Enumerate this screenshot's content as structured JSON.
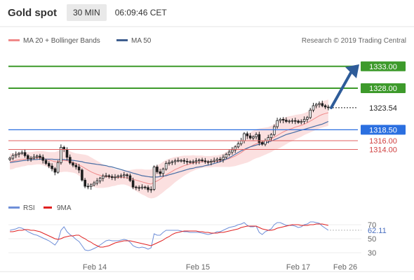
{
  "header": {
    "title": "Gold spot",
    "timeframe": "30 MIN",
    "time": "06:09:46 CET"
  },
  "legend": {
    "ma20": "MA 20 + Bollinger Bands",
    "ma50": "MA 50",
    "credit": "Research © 2019 Trading Central"
  },
  "rsi_legend": {
    "rsi": "RSI",
    "ma": "9MA"
  },
  "chart_data": [
    {
      "type": "line",
      "title": "Gold spot",
      "x_ticks": [
        "Feb 14",
        "Feb 15",
        "Feb 17",
        "Feb 26"
      ],
      "y_range": [
        1304,
        1336
      ],
      "current_price": 1323.54,
      "price_close": [
        1312.0,
        1312.6,
        1312.9,
        1313.1,
        1313.3,
        1312.6,
        1311.9,
        1312.0,
        1312.3,
        1312.5,
        1312.2,
        1311.5,
        1310.8,
        1310.2,
        1309.6,
        1308.8,
        1311.0,
        1314.5,
        1314.0,
        1312.2,
        1310.9,
        1310.4,
        1310.0,
        1309.3,
        1307.0,
        1305.6,
        1305.5,
        1305.9,
        1306.3,
        1306.8,
        1307.4,
        1307.9,
        1308.0,
        1307.8,
        1307.6,
        1307.7,
        1307.9,
        1308.0,
        1308.2,
        1308.0,
        1306.9,
        1305.4,
        1305.3,
        1305.2,
        1305.4,
        1305.3,
        1304.8,
        1304.9,
        1310.0,
        1308.9,
        1308.5,
        1309.5,
        1310.8,
        1311.0,
        1311.2,
        1311.4,
        1311.5,
        1311.5,
        1311.3,
        1311.2,
        1311.1,
        1311.2,
        1311.4,
        1311.6,
        1311.4,
        1311.2,
        1311.1,
        1311.3,
        1311.5,
        1311.8,
        1311.7,
        1312.2,
        1312.9,
        1313.4,
        1313.9,
        1314.6,
        1315.3,
        1316.0,
        1317.6,
        1317.1,
        1316.6,
        1316.9,
        1317.4,
        1315.6,
        1315.2,
        1316.0,
        1316.7,
        1317.4,
        1319.2,
        1320.6,
        1320.9,
        1320.7,
        1320.4,
        1320.5,
        1320.6,
        1320.5,
        1320.2,
        1320.4,
        1320.9,
        1321.3,
        1323.0,
        1324.0,
        1324.3,
        1324.5,
        1324.0,
        1323.7,
        1323.54
      ],
      "ma20": [
        1311.2,
        1311.3,
        1311.5,
        1311.6,
        1311.7,
        1311.8,
        1311.9,
        1311.9,
        1312.0,
        1312.1,
        1312.1,
        1312.0,
        1311.8,
        1311.6,
        1311.4,
        1311.2,
        1311.2,
        1311.4,
        1311.5,
        1311.4,
        1311.2,
        1311.0,
        1310.8,
        1310.5,
        1310.1,
        1309.7,
        1309.3,
        1308.9,
        1308.6,
        1308.3,
        1308.1,
        1307.9,
        1307.8,
        1307.7,
        1307.7,
        1307.6,
        1307.6,
        1307.6,
        1307.6,
        1307.5,
        1307.4,
        1307.2,
        1307.0,
        1306.8,
        1306.6,
        1306.4,
        1306.2,
        1306.1,
        1306.5,
        1306.8,
        1307.2,
        1307.7,
        1308.2,
        1308.6,
        1309.0,
        1309.4,
        1309.7,
        1310.0,
        1310.3,
        1310.5,
        1310.7,
        1310.9,
        1311.0,
        1311.1,
        1311.2,
        1311.2,
        1311.2,
        1311.2,
        1311.3,
        1311.3,
        1311.4,
        1311.5,
        1311.7,
        1311.9,
        1312.2,
        1312.5,
        1312.9,
        1313.3,
        1313.8,
        1314.2,
        1314.6,
        1315.0,
        1315.3,
        1315.5,
        1315.7,
        1315.9,
        1316.1,
        1316.4,
        1316.8,
        1317.2,
        1317.6,
        1318.0,
        1318.3,
        1318.6,
        1318.8,
        1319.1,
        1319.3,
        1319.5,
        1319.8,
        1320.1,
        1320.5,
        1320.9,
        1321.3,
        1321.7,
        1322.0,
        1322.2,
        1322.4
      ],
      "bb_width": [
        1.8,
        1.8,
        1.7,
        1.7,
        1.6,
        1.6,
        1.5,
        1.5,
        1.5,
        1.5,
        1.5,
        1.6,
        1.7,
        1.8,
        2.0,
        2.2,
        2.4,
        2.6,
        2.6,
        2.5,
        2.4,
        2.3,
        2.3,
        2.5,
        2.8,
        3.1,
        3.3,
        3.3,
        3.2,
        3.1,
        2.9,
        2.7,
        2.5,
        2.3,
        2.1,
        1.9,
        1.7,
        1.6,
        1.6,
        1.7,
        1.9,
        2.2,
        2.5,
        2.7,
        2.9,
        3.0,
        3.2,
        3.3,
        3.6,
        3.6,
        3.5,
        3.5,
        3.4,
        3.3,
        3.1,
        2.9,
        2.7,
        2.5,
        2.3,
        2.1,
        1.9,
        1.8,
        1.6,
        1.5,
        1.4,
        1.3,
        1.3,
        1.3,
        1.3,
        1.3,
        1.4,
        1.5,
        1.7,
        1.9,
        2.1,
        2.3,
        2.5,
        2.7,
        3.0,
        3.2,
        3.3,
        3.3,
        3.3,
        3.3,
        3.2,
        3.1,
        3.0,
        3.0,
        3.0,
        3.1,
        3.2,
        3.2,
        3.1,
        3.0,
        2.9,
        2.8,
        2.7,
        2.6,
        2.5,
        2.5,
        2.6,
        2.7,
        2.8,
        2.9,
        3.0,
        3.0,
        3.0
      ],
      "ma50": [
        1311.0,
        1311.1,
        1311.2,
        1311.3,
        1311.4,
        1311.5,
        1311.6,
        1311.6,
        1311.7,
        1311.7,
        1311.8,
        1311.8,
        1311.8,
        1311.8,
        1311.8,
        1311.7,
        1311.7,
        1311.7,
        1311.7,
        1311.6,
        1311.6,
        1311.5,
        1311.4,
        1311.3,
        1311.2,
        1311.0,
        1310.9,
        1310.8,
        1310.7,
        1310.6,
        1310.5,
        1310.4,
        1310.3,
        1310.1,
        1310.0,
        1309.8,
        1309.6,
        1309.4,
        1309.2,
        1309.0,
        1308.8,
        1308.6,
        1308.4,
        1308.2,
        1308.0,
        1307.9,
        1307.8,
        1307.7,
        1307.7,
        1307.7,
        1307.8,
        1307.9,
        1308.0,
        1308.2,
        1308.4,
        1308.6,
        1308.8,
        1309.0,
        1309.2,
        1309.4,
        1309.6,
        1309.7,
        1309.9,
        1310.0,
        1310.1,
        1310.3,
        1310.4,
        1310.6,
        1310.8,
        1311.0,
        1311.2,
        1311.5,
        1311.8,
        1312.1,
        1312.5,
        1312.9,
        1313.3,
        1313.7,
        1314.0,
        1314.3,
        1314.6,
        1314.8,
        1315.0,
        1315.2,
        1315.3,
        1315.5,
        1315.7,
        1315.9,
        1316.2,
        1316.5,
        1316.8,
        1317.1,
        1317.4,
        1317.6,
        1317.8,
        1318.0,
        1318.2,
        1318.4,
        1318.6,
        1318.8,
        1319.0,
        1319.2,
        1319.4,
        1319.6,
        1319.8,
        1320.1,
        1320.4
      ],
      "horizontal_levels": [
        {
          "value": 1333.0,
          "label": "1333.00",
          "color": "#3d9a2b",
          "kind": "target"
        },
        {
          "value": 1328.0,
          "label": "1328.00",
          "color": "#3d9a2b",
          "kind": "target"
        },
        {
          "value": 1323.54,
          "label": "1323.54",
          "color": "#1a1a1a",
          "kind": "last"
        },
        {
          "value": 1318.5,
          "label": "1318.50",
          "color": "#2b6fe0",
          "kind": "pivot"
        },
        {
          "value": 1316.0,
          "label": "1316.00",
          "color": "#e06060",
          "kind": "support"
        },
        {
          "value": 1314.0,
          "label": "1314.00",
          "color": "#e06060",
          "kind": "support"
        }
      ],
      "colors": {
        "candle": "#1f1f1f",
        "bollinger_fill": "#fbe0e0",
        "ma20": "#f08a8a",
        "ma50": "#4a6fa5",
        "arrow": "#2e5c99"
      }
    },
    {
      "type": "line",
      "title": "RSI",
      "y_ticks": [
        70,
        50,
        30
      ],
      "y_range": [
        15,
        85
      ],
      "last_rsi": "62.11",
      "rsi": [
        62,
        63,
        64,
        66,
        65,
        63,
        60,
        58,
        56,
        55,
        53,
        51,
        49,
        47,
        44,
        41,
        47,
        62,
        67,
        60,
        56,
        53,
        49,
        46,
        40,
        34,
        33,
        34,
        36,
        38,
        41,
        44,
        47,
        48,
        47,
        47,
        47,
        48,
        49,
        48,
        45,
        40,
        38,
        37,
        38,
        37,
        35,
        37,
        57,
        55,
        55,
        59,
        62,
        62,
        62,
        62,
        62,
        61,
        60,
        60,
        59,
        59,
        59,
        59,
        58,
        57,
        56,
        57,
        58,
        60,
        60,
        62,
        64,
        66,
        67,
        68,
        70,
        71,
        73,
        69,
        67,
        67,
        68,
        59,
        56,
        60,
        62,
        64,
        70,
        73,
        73,
        71,
        69,
        69,
        69,
        68,
        66,
        67,
        70,
        71,
        74,
        74,
        73,
        72,
        68,
        65,
        62.11
      ],
      "ma9": [
        60,
        60,
        61,
        62,
        62,
        63,
        63,
        62,
        62,
        61,
        60,
        58,
        56,
        54,
        52,
        50,
        49,
        50,
        52,
        53,
        54,
        54,
        55,
        55,
        52,
        50,
        47,
        45,
        42,
        40,
        38,
        38,
        39,
        40,
        42,
        44,
        45,
        46,
        47,
        47,
        47,
        46,
        45,
        44,
        43,
        42,
        41,
        40,
        42,
        44,
        46,
        48,
        51,
        53,
        56,
        58,
        59,
        60,
        61,
        61,
        61,
        61,
        61,
        60,
        60,
        59,
        59,
        58,
        58,
        58,
        59,
        59,
        60,
        61,
        62,
        63,
        64,
        66,
        67,
        68,
        68,
        68,
        68,
        66,
        64,
        63,
        62,
        62,
        63,
        65,
        66,
        67,
        68,
        69,
        70,
        70,
        70,
        69,
        69,
        69,
        70,
        70,
        71,
        71,
        71,
        70,
        69
      ],
      "colors": {
        "rsi": "#6f8fd8",
        "ma9": "#e02020"
      }
    }
  ]
}
